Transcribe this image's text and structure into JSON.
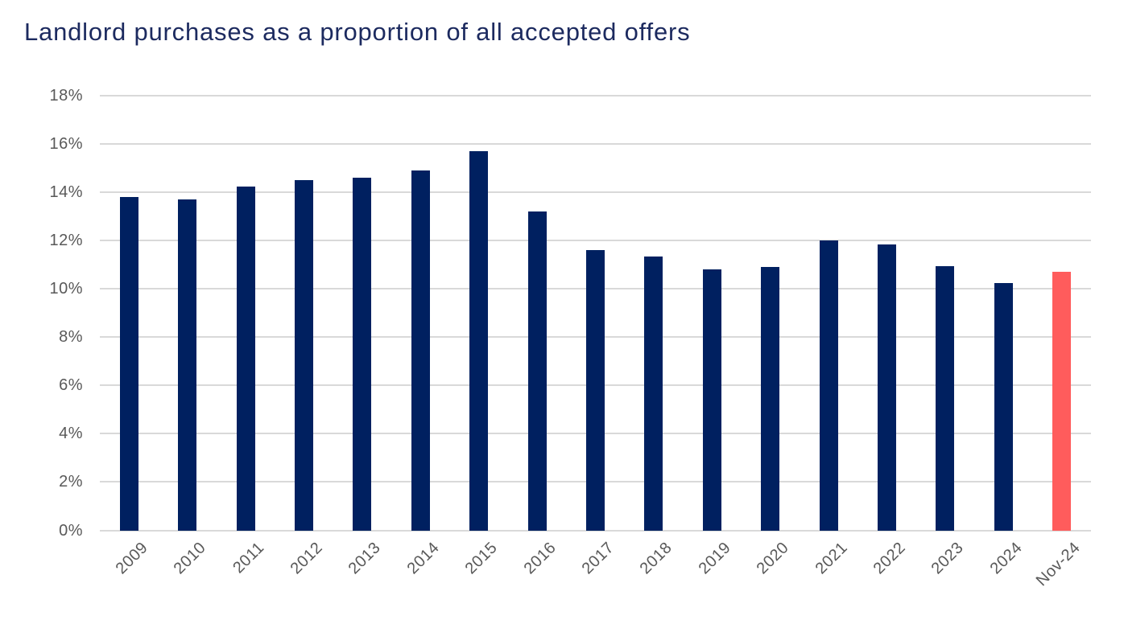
{
  "title": {
    "text": "Landlord purchases as a proportion of all accepted offers",
    "color": "#1C2A5F"
  },
  "chart_data": {
    "type": "bar",
    "title": "Landlord purchases as a proportion of all accepted offers",
    "categories": [
      "2009",
      "2010",
      "2011",
      "2012",
      "2013",
      "2014",
      "2015",
      "2016",
      "2017",
      "2018",
      "2019",
      "2020",
      "2021",
      "2022",
      "2023",
      "2024",
      "Nov-24"
    ],
    "values": [
      13.8,
      13.7,
      14.25,
      14.5,
      14.6,
      14.9,
      15.7,
      13.2,
      11.6,
      11.35,
      10.8,
      10.9,
      12.0,
      11.85,
      10.95,
      10.25,
      10.7
    ],
    "value_unit": "%",
    "xlabel": "",
    "ylabel": "",
    "ylim": [
      0,
      18
    ],
    "ytick_step": 2,
    "yticks": [
      "0%",
      "2%",
      "4%",
      "6%",
      "8%",
      "10%",
      "12%",
      "14%",
      "16%",
      "18%"
    ],
    "grid": "horizontal",
    "legend": "none",
    "colors": {
      "bar": "#002060",
      "highlight_bar": "#FF5C5C",
      "gridline": "#D9D9D9",
      "axis_text": "#595959",
      "background": "#FFFFFF"
    },
    "highlight": {
      "index": 16,
      "category": "Nov-24"
    }
  }
}
